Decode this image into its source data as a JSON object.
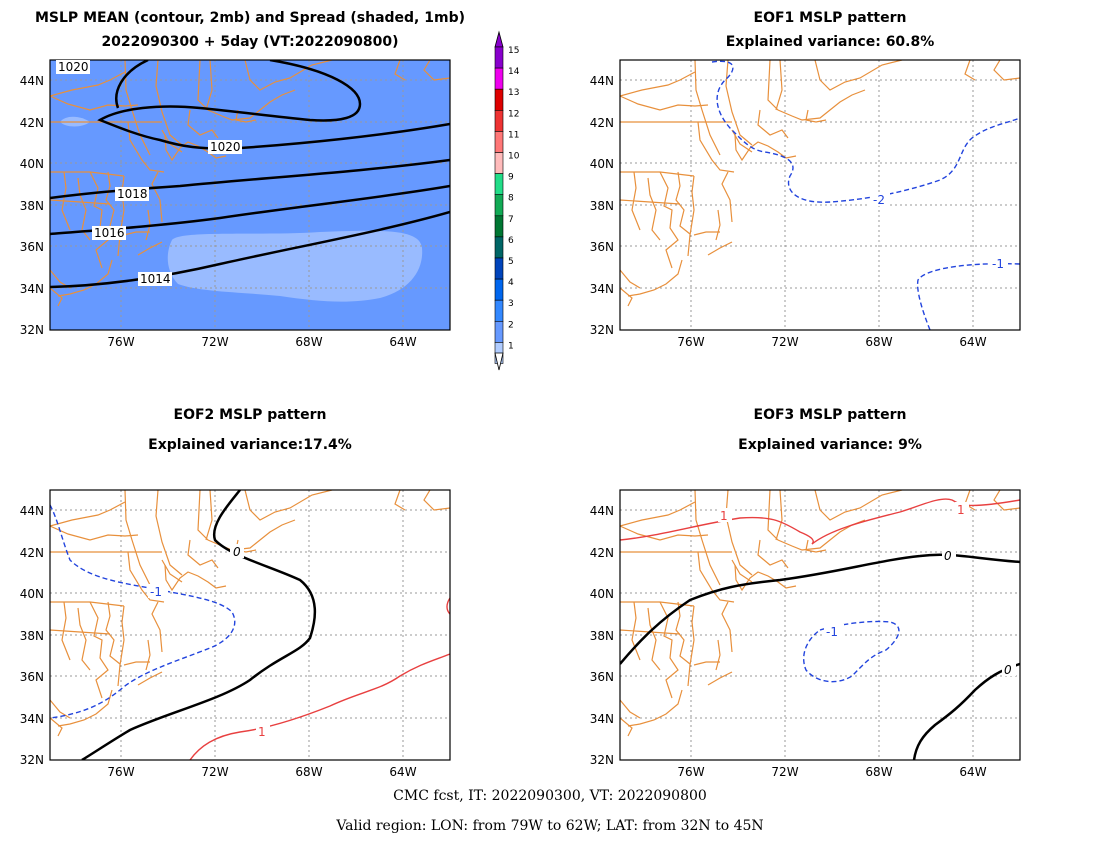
{
  "panel1": {
    "title_line1": "MSLP MEAN (contour, 2mb) and Spread (shaded, 1mb)",
    "title_line2": "2022090300 + 5day (VT:2022090800)",
    "contour_labels": [
      "1020",
      "1020",
      "1018",
      "1016",
      "1014"
    ],
    "colors": {
      "spread_2_3": "#6699ff",
      "spread_1_2": "#99bbff",
      "contour": "#000000"
    }
  },
  "panel2": {
    "title_line1": "EOF1 MSLP pattern",
    "title_line2": "Explained variance: 60.8%",
    "contour_labels": [
      "-2",
      "-1"
    ]
  },
  "panel3": {
    "title_line1": "EOF2 MSLP pattern",
    "title_line2": "Explained variance:17.4%",
    "contour_labels": [
      "0",
      "-1",
      "1"
    ]
  },
  "panel4": {
    "title_line1": "EOF3 MSLP pattern",
    "title_line2": "Explained variance: 9%",
    "contour_labels": [
      "1",
      "1",
      "0",
      "-1",
      "0"
    ]
  },
  "axes": {
    "lon_ticks": [
      "76W",
      "72W",
      "68W",
      "64W"
    ],
    "lat_ticks": [
      "44N",
      "42N",
      "40N",
      "38N",
      "36N",
      "34N",
      "32N"
    ]
  },
  "colorbar": {
    "labels": [
      "15",
      "14",
      "13",
      "12",
      "11",
      "10",
      "9",
      "8",
      "7",
      "6",
      "5",
      "4",
      "3",
      "2",
      "1"
    ],
    "colors": [
      "#8800cc",
      "#ee00ee",
      "#dd0000",
      "#ee3333",
      "#ff7777",
      "#ffbbbb",
      "#22dd88",
      "#11aa55",
      "#007733",
      "#006666",
      "#0044bb",
      "#0066ee",
      "#3388ff",
      "#6699ff",
      "#b0ccff"
    ]
  },
  "footer": {
    "line1": "CMC fcst, IT: 2022090300, VT: 2022090800",
    "line2": "Valid region: LON: from 79W to 62W; LAT: from 32N to 45N"
  },
  "colors": {
    "coast": "#e8903c",
    "grid": "#999999",
    "positive": "#e84040",
    "negative": "#2244dd",
    "zero": "#000000"
  }
}
